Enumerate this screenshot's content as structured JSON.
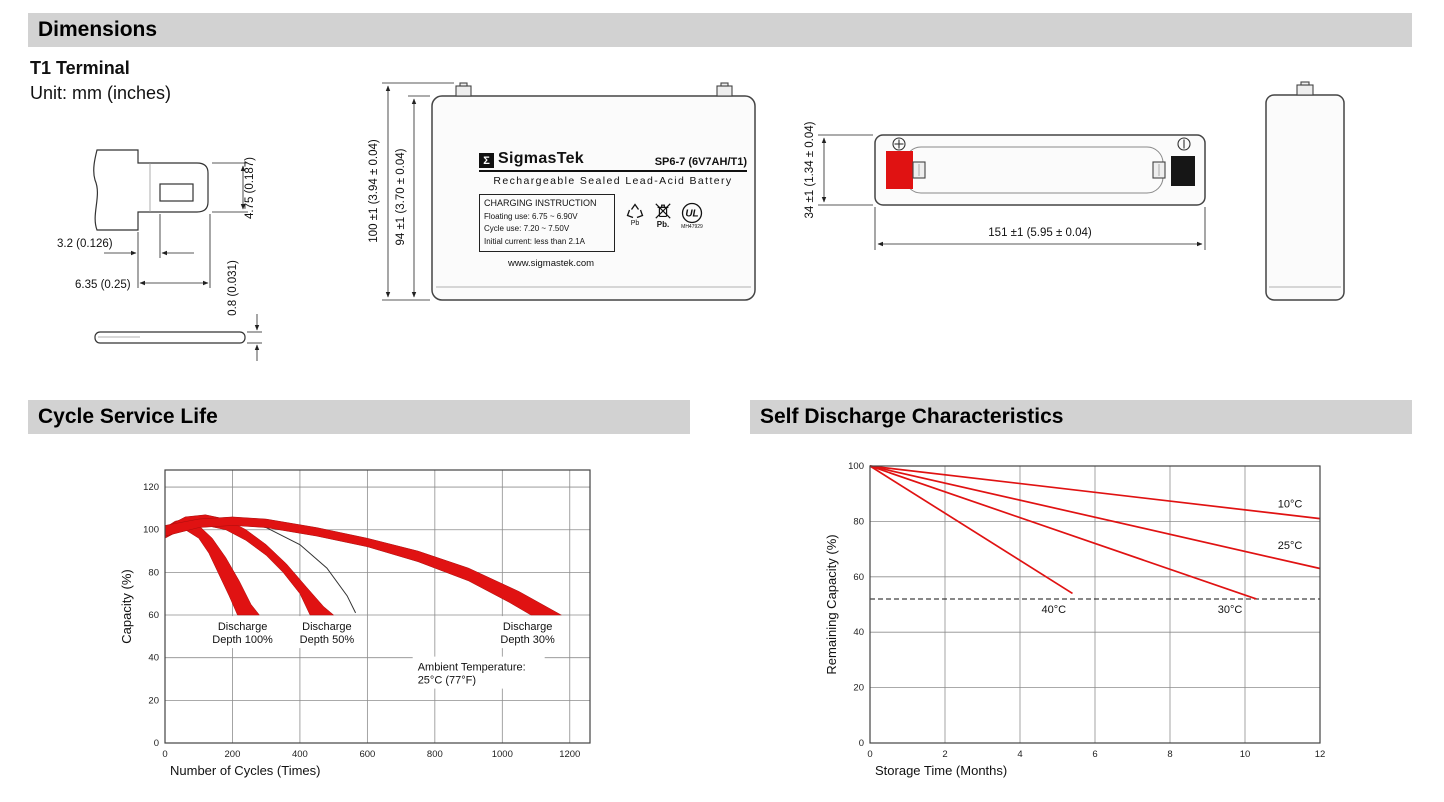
{
  "sections": {
    "dimensions": "Dimensions",
    "cycle_life": "Cycle Service Life",
    "self_discharge": "Self Discharge Characteristics"
  },
  "dimensions": {
    "terminal_type": "T1 Terminal",
    "unit_note": "Unit: mm (inches)",
    "terminal_drawing": {
      "dim_height": "4.75 (0.187)",
      "dim_width_inner": "3.2 (0.126)",
      "dim_width_outer": "6.35 (0.25)",
      "dim_thickness": "0.8 (0.031)"
    },
    "front_view": {
      "dim_height_total": "100 ±1 (3.94 ± 0.04)",
      "dim_height_case": "94 ±1 (3.70 ± 0.04)",
      "label": {
        "brand_symbol": "Σ",
        "brand": "SigmasTek",
        "model": "SP6-7 (6V7AH/T1)",
        "battery_type": "Rechargeable Sealed Lead-Acid Battery",
        "charging_title": "CHARGING INSTRUCTION",
        "charging_line1": "Floating use: 6.75 ~ 6.90V",
        "charging_line2": "Cycle use: 7.20 ~ 7.50V",
        "charging_line3": "Initial current: less than 2.1A",
        "pb_recycle": "Pb",
        "pb_bin": "Pb.",
        "ul_mark": "UL",
        "ul_code": "MH47929",
        "website": "www.sigmastek.com"
      }
    },
    "top_view": {
      "dim_height": "34 ±1 (1.34 ± 0.04)",
      "dim_width": "151 ±1 (5.95 ± 0.04)"
    }
  },
  "chart_data": [
    {
      "id": "cycle_life",
      "type": "area",
      "title": "Cycle Service Life",
      "xlabel": "Number of Cycles (Times)",
      "ylabel": "Capacity (%)",
      "xlim": [
        0,
        1260
      ],
      "ylim": [
        0,
        128
      ],
      "xticks": [
        0,
        200,
        400,
        600,
        800,
        1000,
        1200
      ],
      "yticks": [
        0,
        20,
        40,
        60,
        80,
        100,
        120
      ],
      "grid": true,
      "band_color": "#e01212",
      "bands": [
        {
          "name": "Discharge Depth 100%",
          "upper": [
            [
              0,
              101
            ],
            [
              30,
              104
            ],
            [
              60,
              105
            ],
            [
              100,
              102
            ],
            [
              140,
              96
            ],
            [
              180,
              87
            ],
            [
              220,
              76
            ],
            [
              255,
              65
            ],
            [
              280,
              60
            ]
          ],
          "lower": [
            [
              0,
              96
            ],
            [
              30,
              100
            ],
            [
              60,
              100
            ],
            [
              100,
              96
            ],
            [
              130,
              89
            ],
            [
              160,
              79
            ],
            [
              190,
              69
            ],
            [
              215,
              60
            ]
          ]
        },
        {
          "name": "Discharge Depth 50%",
          "upper": [
            [
              0,
              101
            ],
            [
              60,
              106
            ],
            [
              120,
              107
            ],
            [
              180,
              105
            ],
            [
              240,
              100
            ],
            [
              300,
              93
            ],
            [
              360,
              84
            ],
            [
              420,
              73
            ],
            [
              470,
              64
            ],
            [
              500,
              60
            ]
          ],
          "lower": [
            [
              0,
              96
            ],
            [
              60,
              101
            ],
            [
              120,
              102
            ],
            [
              180,
              100
            ],
            [
              240,
              95
            ],
            [
              300,
              88
            ],
            [
              350,
              80
            ],
            [
              400,
              70
            ],
            [
              430,
              60
            ]
          ]
        },
        {
          "name": "Discharge Depth 30%",
          "upper": [
            [
              0,
              102
            ],
            [
              100,
              105
            ],
            [
              200,
              106
            ],
            [
              300,
              105
            ],
            [
              450,
              101
            ],
            [
              600,
              96
            ],
            [
              750,
              90
            ],
            [
              900,
              82
            ],
            [
              1050,
              71
            ],
            [
              1175,
              60
            ]
          ],
          "lower": [
            [
              0,
              97
            ],
            [
              100,
              101
            ],
            [
              200,
              102
            ],
            [
              300,
              101
            ],
            [
              450,
              97
            ],
            [
              600,
              92
            ],
            [
              750,
              85
            ],
            [
              900,
              76
            ],
            [
              1020,
              66
            ],
            [
              1085,
              60
            ]
          ]
        }
      ],
      "outline": [
        [
          0,
          99
        ],
        [
          100,
          104
        ],
        [
          200,
          105
        ],
        [
          300,
          101
        ],
        [
          400,
          93
        ],
        [
          480,
          82
        ],
        [
          540,
          69
        ],
        [
          565,
          61
        ]
      ],
      "annotations": [
        {
          "lines": [
            "Discharge",
            "Depth 100%"
          ],
          "x": 230,
          "y": 52,
          "w": 72
        },
        {
          "lines": [
            "Discharge",
            "Depth 50%"
          ],
          "x": 480,
          "y": 52,
          "w": 72
        },
        {
          "lines": [
            "Discharge",
            "Depth 30%"
          ],
          "x": 1075,
          "y": 52,
          "w": 72
        },
        {
          "lines": [
            "Ambient Temperature:",
            "25°C (77°F)"
          ],
          "x": 930,
          "y": 33,
          "w": 132,
          "align": "left"
        }
      ]
    },
    {
      "id": "self_discharge",
      "type": "line",
      "title": "Self Discharge Characteristics",
      "xlabel": "Storage Time (Months)",
      "ylabel": "Remaining Capacity (%)",
      "xlim": [
        0,
        12
      ],
      "ylim": [
        0,
        100
      ],
      "xticks": [
        0,
        2,
        4,
        6,
        8,
        10,
        12
      ],
      "yticks": [
        0,
        20,
        40,
        60,
        80,
        100
      ],
      "grid": true,
      "line_color": "#e01212",
      "series": [
        {
          "name": "10°C",
          "points": [
            [
              0,
              100
            ],
            [
              12,
              81
            ]
          ],
          "label_x": 11.2,
          "label_y": 85
        },
        {
          "name": "25°C",
          "points": [
            [
              0,
              100
            ],
            [
              12,
              63
            ]
          ],
          "label_x": 11.2,
          "label_y": 70
        },
        {
          "name": "30°C",
          "points": [
            [
              0,
              100
            ],
            [
              10.3,
              52
            ]
          ],
          "label_x": 9.6,
          "label_y": 47
        },
        {
          "name": "40°C",
          "points": [
            [
              0,
              100
            ],
            [
              5.4,
              54
            ]
          ],
          "label_x": 4.9,
          "label_y": 47
        }
      ],
      "dashed_line_y": 52
    }
  ]
}
